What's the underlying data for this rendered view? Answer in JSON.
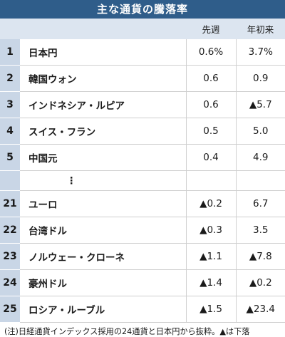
{
  "title": "主な通貨の騰落率",
  "headers": {
    "week": "先週",
    "ytd": "年初来"
  },
  "rows_top": [
    {
      "rank": "1",
      "name": "日本円",
      "week": "0.6%",
      "ytd": "3.7%"
    },
    {
      "rank": "2",
      "name": "韓国ウォン",
      "week": "0.6",
      "ytd": "0.9"
    },
    {
      "rank": "3",
      "name": "インドネシア・ルピア",
      "week": "0.6",
      "ytd": "▲5.7"
    },
    {
      "rank": "4",
      "name": "スイス・フラン",
      "week": "0.5",
      "ytd": "5.0"
    },
    {
      "rank": "5",
      "name": "中国元",
      "week": "0.4",
      "ytd": "4.9"
    }
  ],
  "ellipsis": "⋮",
  "rows_bottom": [
    {
      "rank": "21",
      "name": "ユーロ",
      "week": "▲0.2",
      "ytd": "6.7"
    },
    {
      "rank": "22",
      "name": "台湾ドル",
      "week": "▲0.3",
      "ytd": "3.5"
    },
    {
      "rank": "23",
      "name": "ノルウェー・クローネ",
      "week": "▲1.1",
      "ytd": "▲7.8"
    },
    {
      "rank": "24",
      "name": "豪州ドル",
      "week": "▲1.4",
      "ytd": "▲0.2"
    },
    {
      "rank": "25",
      "name": "ロシア・ルーブル",
      "week": "▲1.5",
      "ytd": "▲23.4"
    }
  ],
  "footnote": "(注)日経通貨インデックス採用の24通貨と日本円から抜粋。▲は下落"
}
